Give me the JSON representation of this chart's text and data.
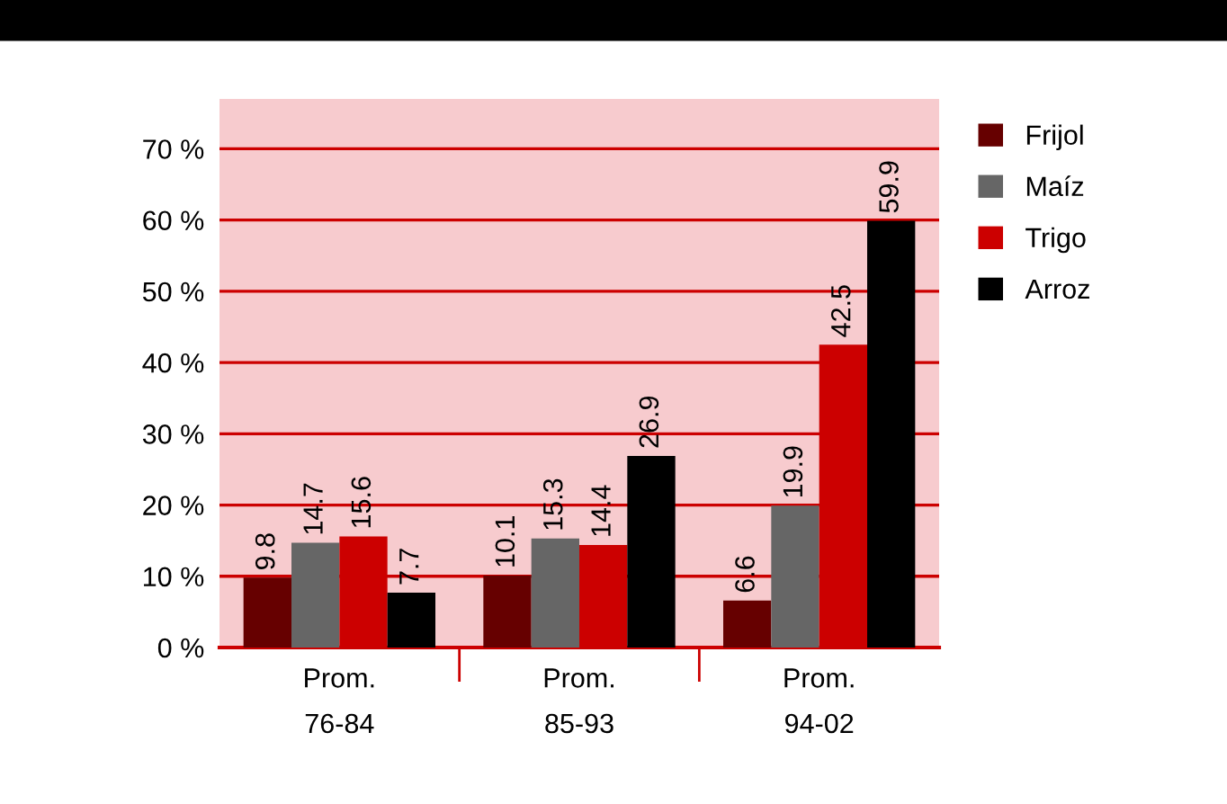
{
  "chart_data": {
    "type": "bar",
    "categories": [
      "Prom.\n76-84",
      "Prom.\n85-93",
      "Prom.\n94-02"
    ],
    "series": [
      {
        "name": "Frijol",
        "color": "#660000",
        "values": [
          9.8,
          10.1,
          6.6
        ]
      },
      {
        "name": "Maíz",
        "color": "#666666",
        "values": [
          14.7,
          15.3,
          19.9
        ]
      },
      {
        "name": "Trigo",
        "color": "#cc0000",
        "values": [
          15.6,
          14.4,
          42.5
        ]
      },
      {
        "name": "Arroz",
        "color": "#000000",
        "values": [
          7.7,
          26.9,
          59.9
        ]
      }
    ],
    "ylim": [
      0,
      77
    ],
    "yticks": [
      {
        "value": 0,
        "label": "0 %"
      },
      {
        "value": 10,
        "label": "10 %"
      },
      {
        "value": 20,
        "label": "20 %"
      },
      {
        "value": 30,
        "label": "30 %"
      },
      {
        "value": 40,
        "label": "40 %"
      },
      {
        "value": 50,
        "label": "50 %"
      },
      {
        "value": 60,
        "label": "60 %"
      },
      {
        "value": 70,
        "label": "70 %"
      }
    ],
    "grid": "y",
    "legend": "right",
    "data_labels": true
  }
}
